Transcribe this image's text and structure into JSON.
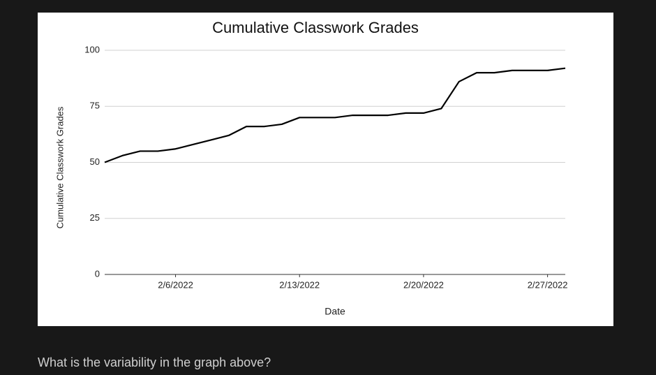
{
  "chart_data": {
    "type": "line",
    "title": "Cumulative Classwork Grades",
    "x_label": "Date",
    "y_label": "Cumulative Classwork Grades",
    "x": [
      "2022-02-02",
      "2022-02-03",
      "2022-02-04",
      "2022-02-05",
      "2022-02-06",
      "2022-02-07",
      "2022-02-08",
      "2022-02-09",
      "2022-02-10",
      "2022-02-11",
      "2022-02-12",
      "2022-02-13",
      "2022-02-14",
      "2022-02-15",
      "2022-02-16",
      "2022-02-17",
      "2022-02-18",
      "2022-02-19",
      "2022-02-20",
      "2022-02-21",
      "2022-02-22",
      "2022-02-23",
      "2022-02-24",
      "2022-02-25",
      "2022-02-26",
      "2022-02-27",
      "2022-02-28"
    ],
    "values": [
      50,
      53,
      55,
      55,
      56,
      58,
      60,
      62,
      66,
      66,
      67,
      70,
      70,
      70,
      71,
      71,
      71,
      72,
      72,
      74,
      86,
      90,
      90,
      91,
      91,
      91,
      92
    ],
    "color": "#000000",
    "xlim": [
      "2022-02-02",
      "2022-02-28"
    ],
    "xticks": [
      {
        "value": "2022-02-06",
        "label": "2/6/2022"
      },
      {
        "value": "2022-02-13",
        "label": "2/13/2022"
      },
      {
        "value": "2022-02-20",
        "label": "2/20/2022"
      },
      {
        "value": "2022-02-27",
        "label": "2/27/2022"
      }
    ],
    "ylim": [
      0,
      100
    ],
    "yticks": [
      0,
      25,
      50,
      75,
      100
    ],
    "grid": true
  },
  "question": "What is the variability in the graph above?"
}
